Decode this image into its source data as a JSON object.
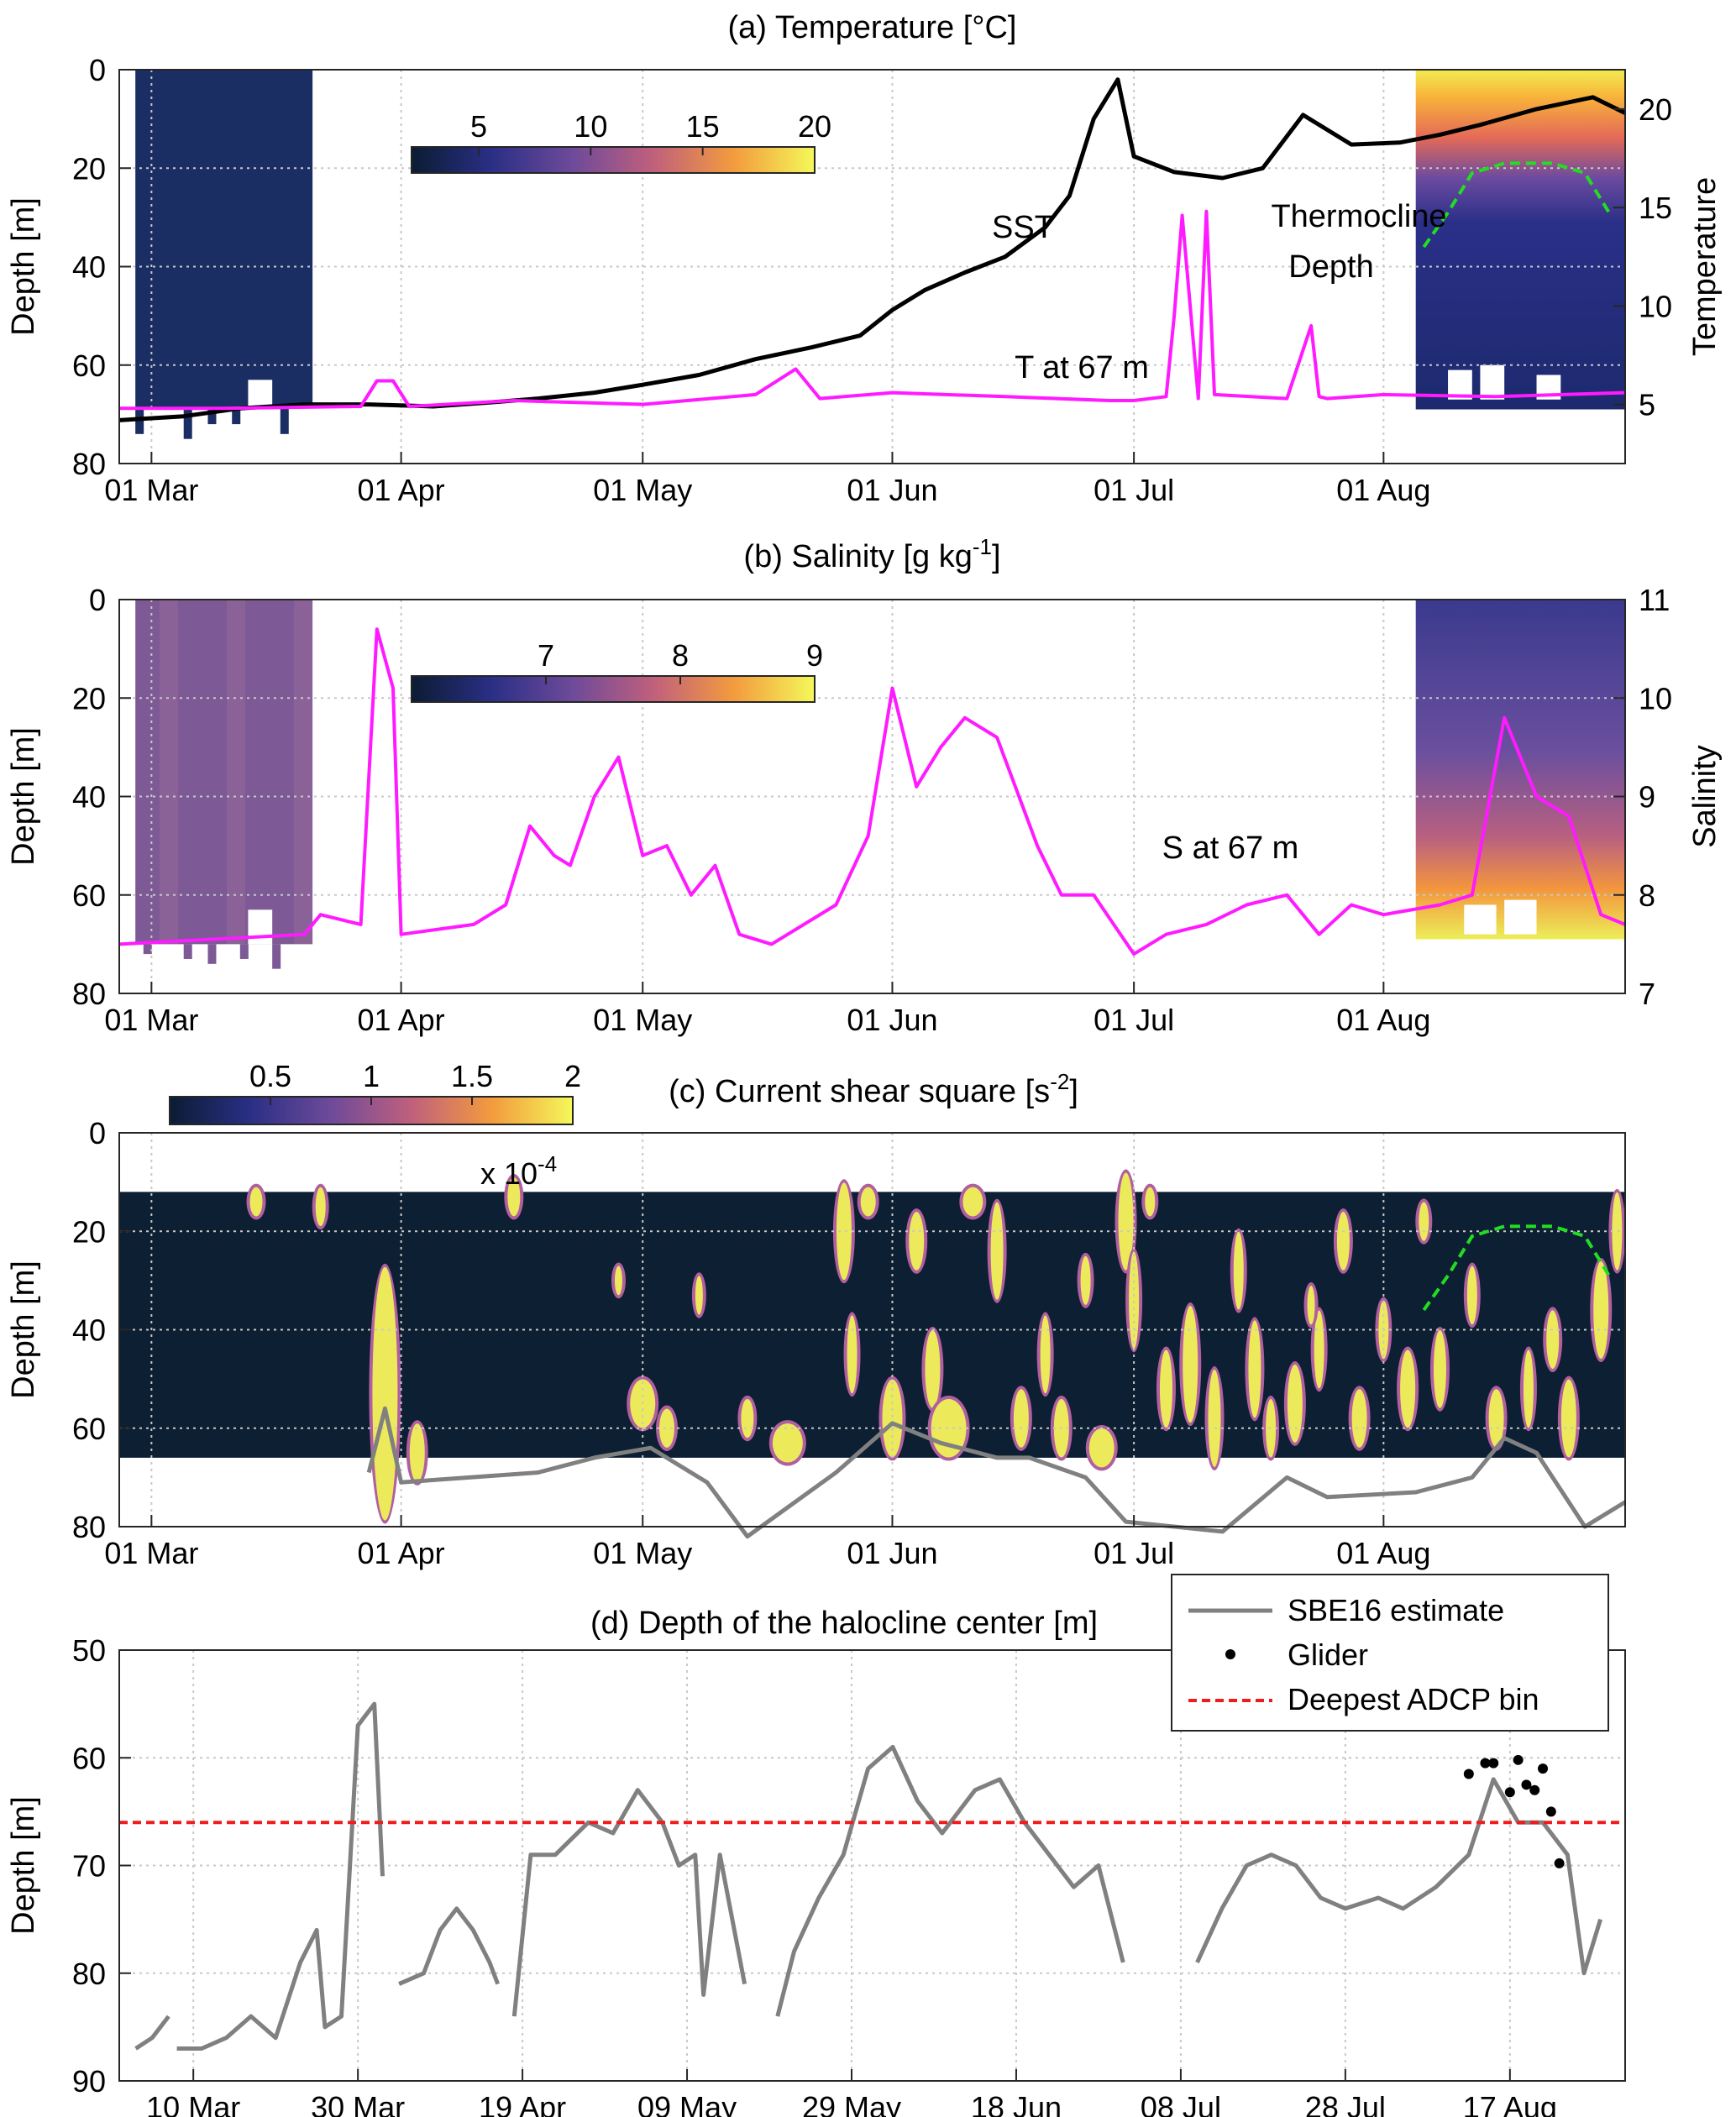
{
  "chart_data": [
    {
      "id": "a",
      "type": "heatmap",
      "title": "(a) Temperature [°C]",
      "ylabel": "Depth [m]",
      "y2label": "Temperature",
      "ylim": [
        0,
        80
      ],
      "y2lim": [
        2,
        22
      ],
      "x_ticks": [
        "01 Mar",
        "01 Apr",
        "01 May",
        "01 Jun",
        "01 Jul",
        "01 Aug"
      ],
      "y_ticks": [
        "0",
        "20",
        "40",
        "60",
        "80"
      ],
      "y2_ticks": [
        "5",
        "10",
        "15",
        "20"
      ],
      "colorbar": {
        "ticks": [
          "5",
          "10",
          "15",
          "20"
        ],
        "values": [
          5,
          10,
          15,
          20
        ],
        "range": [
          2,
          20
        ]
      },
      "annotations": [
        "SST",
        "Thermocline",
        "Depth",
        "T at 67 m"
      ],
      "colors": {
        "sst": "#000000",
        "t67": "#ff1aff",
        "thermocline": "#22dd22"
      },
      "series": [
        {
          "key": "sst",
          "axis": "right",
          "x": [
            "2015-02-25",
            "2015-03-05",
            "2015-03-12",
            "2015-03-20",
            "2015-03-28",
            "2015-04-05",
            "2015-04-12",
            "2015-04-18",
            "2015-04-25",
            "2015-05-01",
            "2015-05-08",
            "2015-05-15",
            "2015-05-22",
            "2015-05-28",
            "2015-06-01",
            "2015-06-05",
            "2015-06-10",
            "2015-06-15",
            "2015-06-20",
            "2015-06-23",
            "2015-06-26",
            "2015-06-29",
            "2015-07-01",
            "2015-07-06",
            "2015-07-12",
            "2015-07-17",
            "2015-07-22",
            "2015-07-28",
            "2015-08-03",
            "2015-08-08",
            "2015-08-13",
            "2015-08-20",
            "2015-08-27",
            "2015-08-31"
          ],
          "y": [
            4.2,
            4.4,
            4.8,
            5.0,
            5.0,
            4.9,
            5.1,
            5.3,
            5.6,
            6.0,
            6.5,
            7.3,
            7.9,
            8.5,
            9.8,
            10.8,
            11.7,
            12.5,
            14.0,
            15.6,
            19.5,
            21.5,
            17.6,
            16.8,
            16.5,
            17.0,
            19.7,
            18.2,
            18.3,
            18.7,
            19.2,
            20.0,
            20.6,
            19.8
          ]
        },
        {
          "key": "t67",
          "axis": "right",
          "x": [
            "2015-02-25",
            "2015-03-10",
            "2015-03-27",
            "2015-03-29",
            "2015-03-31",
            "2015-04-02",
            "2015-04-15",
            "2015-05-01",
            "2015-05-15",
            "2015-05-20",
            "2015-05-23",
            "2015-06-01",
            "2015-06-15",
            "2015-06-28",
            "2015-07-01",
            "2015-07-05",
            "2015-07-06",
            "2015-07-07",
            "2015-07-09",
            "2015-07-10",
            "2015-07-11",
            "2015-07-20",
            "2015-07-23",
            "2015-07-24",
            "2015-07-25",
            "2015-08-01",
            "2015-08-15",
            "2015-08-31"
          ],
          "y": [
            4.8,
            4.8,
            4.9,
            6.2,
            6.2,
            4.9,
            5.2,
            5.0,
            5.5,
            6.8,
            5.3,
            5.6,
            5.4,
            5.2,
            5.2,
            5.4,
            9.5,
            14.6,
            5.3,
            14.8,
            5.5,
            5.3,
            9.0,
            5.4,
            5.3,
            5.5,
            5.4,
            5.6
          ]
        },
        {
          "key": "thermocline",
          "axis": "left",
          "x": [
            "2015-08-06",
            "2015-08-09",
            "2015-08-12",
            "2015-08-16",
            "2015-08-22",
            "2015-08-26",
            "2015-08-29"
          ],
          "y": [
            36,
            29,
            21,
            19,
            19,
            21,
            29
          ]
        }
      ]
    },
    {
      "id": "b",
      "type": "heatmap",
      "title": "(b) Salinity [g kg",
      "title_sup": "-1",
      "title_end": "]",
      "ylabel": "Depth [m]",
      "y2label": "Salinity",
      "ylim": [
        0,
        80
      ],
      "y2lim": [
        7,
        11
      ],
      "x_ticks": [
        "01 Mar",
        "01 Apr",
        "01 May",
        "01 Jun",
        "01 Jul",
        "01 Aug"
      ],
      "y_ticks": [
        "0",
        "20",
        "40",
        "60",
        "80"
      ],
      "y2_ticks": [
        "7",
        "8",
        "9",
        "10",
        "11"
      ],
      "colorbar": {
        "ticks": [
          "7",
          "8",
          "9"
        ],
        "values": [
          7,
          8,
          9
        ],
        "range": [
          6,
          9
        ]
      },
      "annotations": [
        "S at 67 m"
      ],
      "colors": {
        "s67": "#ff1aff"
      },
      "series": [
        {
          "key": "s67",
          "axis": "right",
          "x": [
            "2015-02-25",
            "2015-03-20",
            "2015-03-22",
            "2015-03-27",
            "2015-03-29",
            "2015-03-31",
            "2015-04-01",
            "2015-04-10",
            "2015-04-14",
            "2015-04-17",
            "2015-04-20",
            "2015-04-22",
            "2015-04-25",
            "2015-04-28",
            "2015-05-01",
            "2015-05-04",
            "2015-05-07",
            "2015-05-10",
            "2015-05-13",
            "2015-05-17",
            "2015-05-25",
            "2015-05-29",
            "2015-06-01",
            "2015-06-04",
            "2015-06-07",
            "2015-06-10",
            "2015-06-14",
            "2015-06-19",
            "2015-06-22",
            "2015-06-26",
            "2015-07-01",
            "2015-07-05",
            "2015-07-10",
            "2015-07-15",
            "2015-07-20",
            "2015-07-24",
            "2015-07-28",
            "2015-08-01",
            "2015-08-08",
            "2015-08-12",
            "2015-08-16",
            "2015-08-20",
            "2015-08-24",
            "2015-08-28",
            "2015-08-31"
          ],
          "y": [
            7.5,
            7.6,
            7.8,
            7.7,
            10.7,
            10.1,
            7.6,
            7.7,
            7.9,
            8.7,
            8.4,
            8.3,
            9.0,
            9.4,
            8.4,
            8.5,
            8.0,
            8.3,
            7.6,
            7.5,
            7.9,
            8.6,
            10.1,
            9.1,
            9.5,
            9.8,
            9.6,
            8.5,
            8.0,
            8.0,
            7.4,
            7.6,
            7.7,
            7.9,
            8.0,
            7.6,
            7.9,
            7.8,
            7.9,
            8.0,
            9.8,
            9.0,
            8.8,
            7.8,
            7.7
          ]
        }
      ]
    },
    {
      "id": "c",
      "type": "heatmap",
      "title": "(c) Current shear square [s",
      "title_sup": "-2",
      "title_end": "]",
      "ylabel": "Depth [m]",
      "ylim": [
        0,
        80
      ],
      "x_ticks": [
        "01 Mar",
        "01 Apr",
        "01 May",
        "01 Jun",
        "01 Jul",
        "01 Aug"
      ],
      "y_ticks": [
        "0",
        "20",
        "40",
        "60",
        "80"
      ],
      "colorbar": {
        "ticks": [
          "0.5",
          "1",
          "1.5",
          "2"
        ],
        "values": [
          0.5,
          1,
          1.5,
          2
        ],
        "range": [
          0,
          2
        ],
        "multiplier": "x 10",
        "multiplier_sup": "-4"
      },
      "colors": {
        "background": "#0d1f33",
        "mid": "#b05fa0",
        "high": "#ecea5a",
        "halocline": "#808080",
        "thermocline": "#22dd22"
      },
      "series": [
        {
          "key": "halocline",
          "x": [
            "2015-03-28",
            "2015-03-30",
            "2015-04-01",
            "2015-04-18",
            "2015-04-25",
            "2015-05-02",
            "2015-05-09",
            "2015-05-14",
            "2015-05-25",
            "2015-06-01",
            "2015-06-07",
            "2015-06-14",
            "2015-06-18",
            "2015-06-25",
            "2015-06-30",
            "2015-07-12",
            "2015-07-20",
            "2015-07-25",
            "2015-08-05",
            "2015-08-12",
            "2015-08-16",
            "2015-08-20",
            "2015-08-26",
            "2015-08-31"
          ],
          "y": [
            69,
            56,
            71,
            69,
            66,
            64,
            71,
            82,
            69,
            59,
            63,
            66,
            66,
            70,
            79,
            81,
            70,
            74,
            73,
            70,
            62,
            65,
            80,
            75
          ]
        },
        {
          "key": "thermocline",
          "x": [
            "2015-08-06",
            "2015-08-09",
            "2015-08-12",
            "2015-08-16",
            "2015-08-22",
            "2015-08-26",
            "2015-08-29"
          ],
          "y": [
            36,
            29,
            21,
            19,
            19,
            21,
            29
          ]
        }
      ]
    },
    {
      "id": "d",
      "type": "line",
      "title": "(d) Depth of the halocline center [m]",
      "ylabel": "Depth [m]",
      "ylim": [
        50,
        90
      ],
      "x_ticks": [
        "10 Mar",
        "30 Mar",
        "19 Apr",
        "09 May",
        "29 May",
        "18 Jun",
        "08 Jul",
        "28 Jul",
        "17 Aug"
      ],
      "y_ticks": [
        "50",
        "60",
        "70",
        "80",
        "90"
      ],
      "legend": {
        "position": "top-right",
        "entries": [
          "SBE16 estimate",
          "Glider",
          "Deepest ADCP bin"
        ]
      },
      "colors": {
        "sbe16": "#808080",
        "glider": "#000000",
        "adcp": "#ee1c1c"
      },
      "series": [
        {
          "key": "sbe16",
          "segments": [
            {
              "x": [
                "2015-03-03",
                "2015-03-05",
                "2015-03-07"
              ],
              "y": [
                87,
                86,
                84
              ]
            },
            {
              "x": [
                "2015-03-08",
                "2015-03-11",
                "2015-03-14",
                "2015-03-17",
                "2015-03-20",
                "2015-03-23",
                "2015-03-25",
                "2015-03-26",
                "2015-03-28",
                "2015-03-30",
                "2015-04-01",
                "2015-04-02"
              ],
              "y": [
                87,
                87,
                86,
                84,
                86,
                79,
                76,
                85,
                84,
                57,
                55,
                71
              ]
            },
            {
              "x": [
                "2015-04-04",
                "2015-04-07",
                "2015-04-09",
                "2015-04-11",
                "2015-04-13",
                "2015-04-15",
                "2015-04-16"
              ],
              "y": [
                81,
                80,
                76,
                74,
                76,
                79,
                81
              ]
            },
            {
              "x": [
                "2015-04-18",
                "2015-04-20",
                "2015-04-23",
                "2015-04-27",
                "2015-04-30",
                "2015-05-03",
                "2015-05-06",
                "2015-05-08",
                "2015-05-10",
                "2015-05-11",
                "2015-05-13",
                "2015-05-16"
              ],
              "y": [
                84,
                69,
                69,
                66,
                67,
                63,
                66,
                70,
                69,
                82,
                69,
                81
              ]
            },
            {
              "x": [
                "2015-05-20",
                "2015-05-22",
                "2015-05-25",
                "2015-05-28",
                "2015-05-31",
                "2015-06-03",
                "2015-06-06",
                "2015-06-09",
                "2015-06-13",
                "2015-06-16",
                "2015-06-19",
                "2015-06-22",
                "2015-06-25",
                "2015-06-28",
                "2015-07-01"
              ],
              "y": [
                84,
                78,
                73,
                69,
                61,
                59,
                64,
                67,
                63,
                62,
                66,
                69,
                72,
                70,
                79
              ]
            },
            {
              "x": [
                "2015-07-10",
                "2015-07-13",
                "2015-07-16",
                "2015-07-19",
                "2015-07-22",
                "2015-07-25",
                "2015-07-28",
                "2015-08-01",
                "2015-08-04",
                "2015-08-08",
                "2015-08-12",
                "2015-08-15",
                "2015-08-18",
                "2015-08-21",
                "2015-08-24",
                "2015-08-26",
                "2015-08-28"
              ],
              "y": [
                79,
                74,
                70,
                69,
                70,
                73,
                74,
                73,
                74,
                72,
                69,
                62,
                66,
                66,
                69,
                80,
                75
              ]
            }
          ]
        },
        {
          "key": "glider",
          "x": [
            "2015-08-12",
            "2015-08-14",
            "2015-08-15",
            "2015-08-17",
            "2015-08-18",
            "2015-08-19",
            "2015-08-20",
            "2015-08-21",
            "2015-08-22",
            "2015-08-23"
          ],
          "y": [
            61.5,
            60.5,
            60.5,
            63.2,
            60.2,
            62.5,
            63.0,
            61.0,
            65.0,
            69.8
          ]
        },
        {
          "key": "adcp",
          "y": 66
        }
      ]
    }
  ]
}
